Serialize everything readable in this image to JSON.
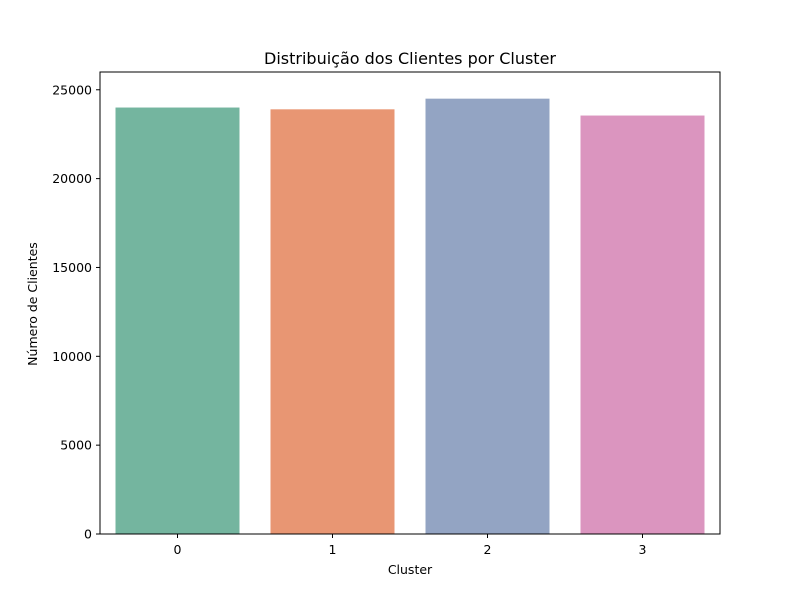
{
  "chart_data": {
    "type": "bar",
    "title": "Distribuição dos Clientes por Cluster",
    "xlabel": "Cluster",
    "ylabel": "Número de Clientes",
    "categories": [
      "0",
      "1",
      "2",
      "3"
    ],
    "values": [
      24000,
      23900,
      24500,
      23550
    ],
    "colors": [
      "#74b59f",
      "#e89673",
      "#93a4c3",
      "#db95bf"
    ],
    "ylim": [
      0,
      26000
    ],
    "yticks": [
      0,
      5000,
      10000,
      15000,
      20000,
      25000
    ],
    "grid": false,
    "legend": "none"
  }
}
